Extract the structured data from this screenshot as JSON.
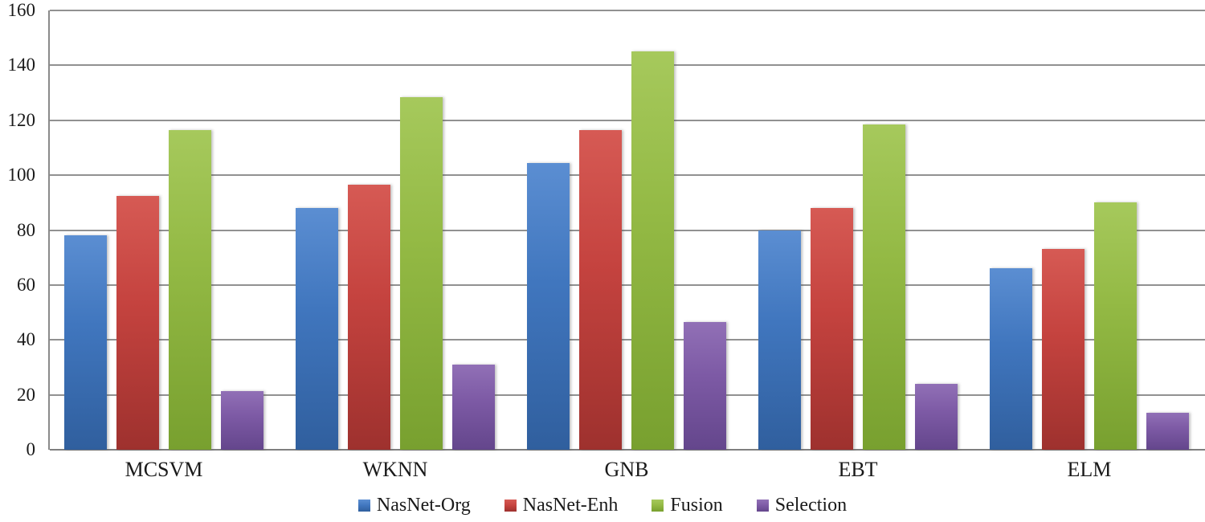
{
  "chart_data": {
    "type": "bar",
    "title": "",
    "xlabel": "",
    "ylabel": "",
    "categories": [
      "MCSVM",
      "WKNN",
      "GNB",
      "EBT",
      "ELM"
    ],
    "series": [
      {
        "name": "NasNet-Org",
        "color": "#4076be",
        "color_light": "#5b8ed2",
        "color_dark": "#305f9e",
        "values": [
          78,
          88,
          104.5,
          80,
          66
        ]
      },
      {
        "name": "NasNet-Enh",
        "color": "#c5433f",
        "color_light": "#d65a54",
        "color_dark": "#9e312e",
        "values": [
          92.5,
          96.5,
          116.5,
          88,
          73
        ]
      },
      {
        "name": "Fusion",
        "color": "#93b944",
        "color_light": "#a6c95c",
        "color_dark": "#78a02f",
        "values": [
          116.5,
          128.5,
          145,
          118.5,
          90
        ]
      },
      {
        "name": "Selection",
        "color": "#7d5aa5",
        "color_light": "#9170b6",
        "color_dark": "#64468c",
        "values": [
          21.5,
          31,
          46.5,
          24,
          13.5
        ]
      }
    ],
    "ylim": [
      0,
      160
    ],
    "ytick_step": 20,
    "ytick_labels": [
      "0",
      "20",
      "40",
      "60",
      "80",
      "100",
      "120",
      "140",
      "160"
    ],
    "grid": true,
    "gridline_color": "#919191",
    "legend_position": "bottom",
    "background_color": "#ffffff",
    "text_color": "#1a1a1a"
  }
}
